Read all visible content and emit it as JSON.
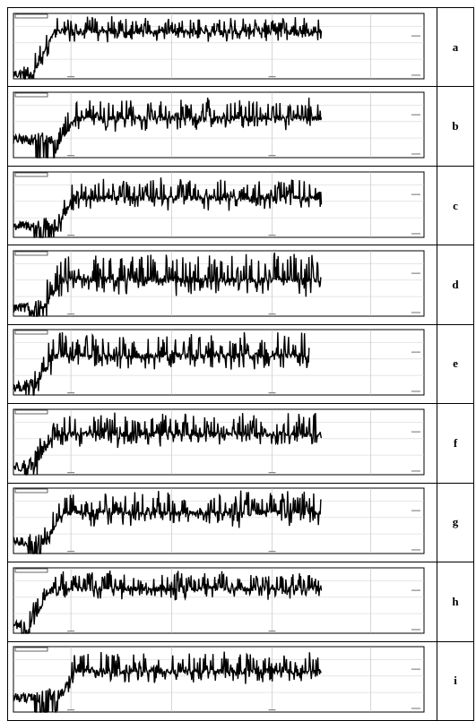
{
  "figure": {
    "panel_labels": [
      "a",
      "b",
      "c",
      "d",
      "e",
      "f",
      "g",
      "h",
      "i"
    ]
  },
  "chart_data": [
    {
      "type": "line",
      "panel": "a",
      "y_axis_scale": "linear",
      "grid": true,
      "pattern": {
        "initial_dip_end": 0.05,
        "low_start": 0.0,
        "mean": 0.72,
        "spike_amp": 0.22,
        "end_fraction": 0.75
      }
    },
    {
      "type": "line",
      "panel": "b",
      "y_axis_scale": "linear",
      "grid": true,
      "pattern": {
        "initial_dip_end": 0.1,
        "low_start": 0.2,
        "mean": 0.6,
        "spike_amp": 0.3,
        "end_fraction": 0.75
      }
    },
    {
      "type": "line",
      "panel": "c",
      "y_axis_scale": "linear",
      "grid": true,
      "pattern": {
        "initial_dip_end": 0.1,
        "low_start": 0.1,
        "mean": 0.6,
        "spike_amp": 0.3,
        "end_fraction": 0.75
      }
    },
    {
      "type": "line",
      "panel": "d",
      "y_axis_scale": "linear",
      "grid": true,
      "pattern": {
        "initial_dip_end": 0.07,
        "low_start": 0.05,
        "mean": 0.55,
        "spike_amp": 0.4,
        "end_fraction": 0.75
      }
    },
    {
      "type": "line",
      "panel": "e",
      "y_axis_scale": "linear",
      "grid": true,
      "pattern": {
        "initial_dip_end": 0.05,
        "low_start": 0.05,
        "mean": 0.6,
        "spike_amp": 0.35,
        "end_fraction": 0.72
      }
    },
    {
      "type": "line",
      "panel": "f",
      "y_axis_scale": "linear",
      "grid": true,
      "pattern": {
        "initial_dip_end": 0.05,
        "low_start": 0.05,
        "mean": 0.62,
        "spike_amp": 0.3,
        "end_fraction": 0.75
      }
    },
    {
      "type": "line",
      "panel": "g",
      "y_axis_scale": "linear",
      "grid": true,
      "pattern": {
        "initial_dip_end": 0.07,
        "low_start": 0.1,
        "mean": 0.62,
        "spike_amp": 0.32,
        "end_fraction": 0.75
      }
    },
    {
      "type": "line",
      "panel": "h",
      "y_axis_scale": "linear",
      "grid": true,
      "pattern": {
        "initial_dip_end": 0.04,
        "low_start": 0.05,
        "mean": 0.68,
        "spike_amp": 0.25,
        "end_fraction": 0.75
      }
    },
    {
      "type": "line",
      "panel": "i",
      "y_axis_scale": "linear",
      "grid": true,
      "pattern": {
        "initial_dip_end": 0.1,
        "low_start": 0.15,
        "mean": 0.62,
        "spike_amp": 0.28,
        "end_fraction": 0.75
      }
    }
  ]
}
